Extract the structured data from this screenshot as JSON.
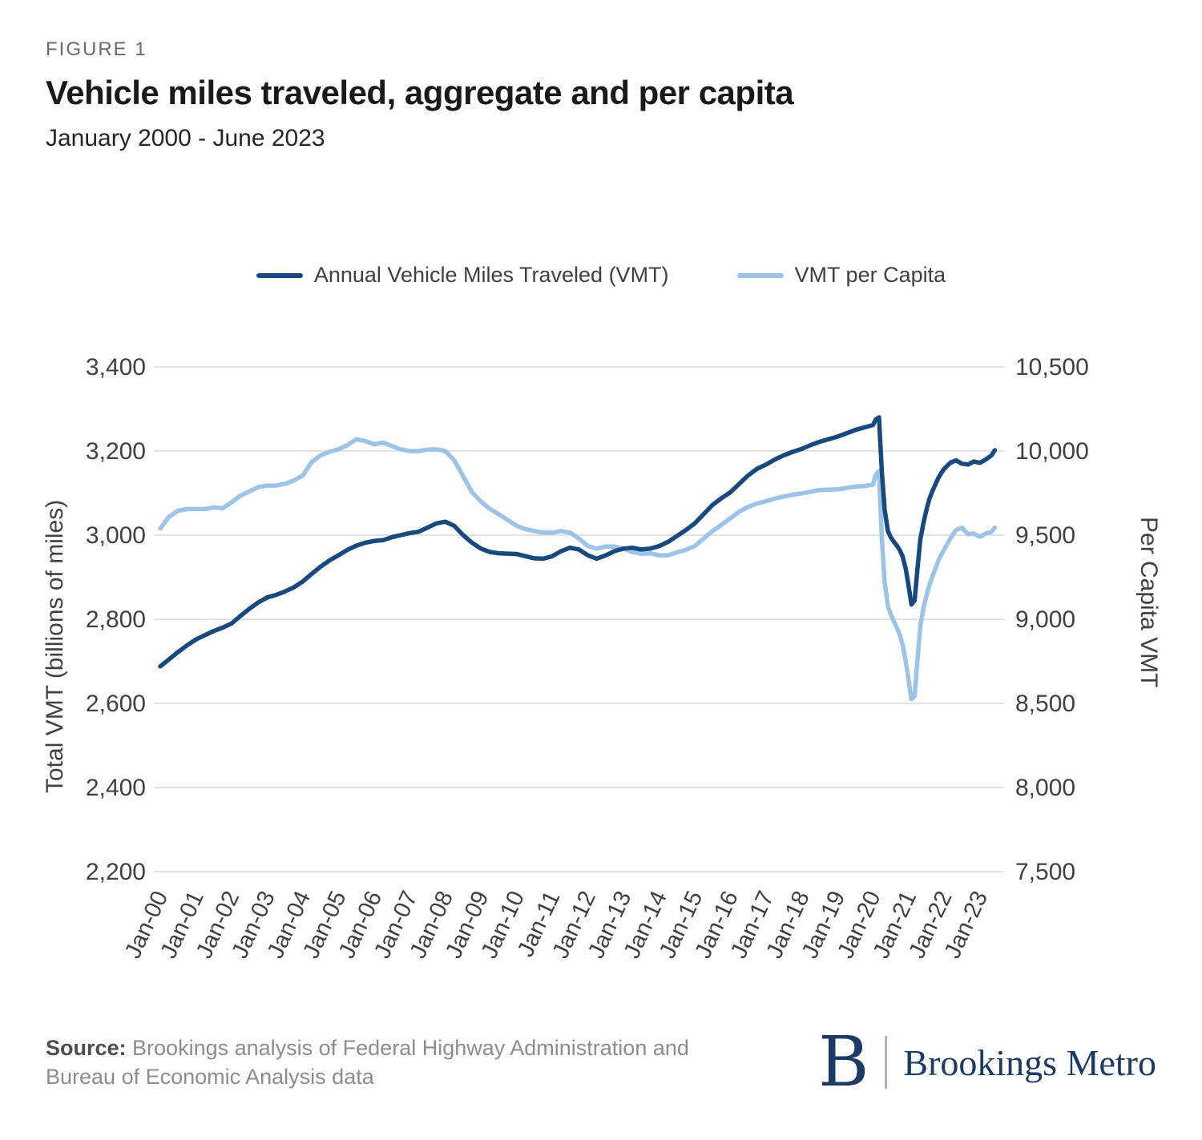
{
  "figure": {
    "label": "FIGURE 1",
    "title": "Vehicle miles traveled, aggregate and per capita",
    "subtitle": "January 2000 - June 2023"
  },
  "legend": {
    "items": [
      {
        "label": "Annual Vehicle Miles Traveled (VMT)"
      },
      {
        "label": "VMT per Capita"
      }
    ]
  },
  "chart_data": {
    "type": "line",
    "title": "Vehicle miles traveled, aggregate and per capita",
    "subtitle": "January 2000 - June 2023",
    "grid": true,
    "legend_position": "top",
    "left_axis": {
      "label": "Total VMT (billions of miles)",
      "range": [
        2200,
        3400
      ],
      "ticks": [
        "3,400",
        "3,200",
        "3,000",
        "2,800",
        "2,600",
        "2,400",
        "2,200"
      ]
    },
    "right_axis": {
      "label": "Per Capita VMT",
      "range": [
        7500,
        10500
      ],
      "ticks": [
        "10,500",
        "10,000",
        "9,500",
        "9,000",
        "8,500",
        "8,000",
        "7,500"
      ]
    },
    "x_ticks": [
      "Jan-00",
      "Jan-01",
      "Jan-02",
      "Jan-03",
      "Jan-04",
      "Jan-05",
      "Jan-06",
      "Jan-07",
      "Jan-08",
      "Jan-09",
      "Jan-10",
      "Jan-11",
      "Jan-12",
      "Jan-13",
      "Jan-14",
      "Jan-15",
      "Jan-16",
      "Jan-17",
      "Jan-18",
      "Jan-19",
      "Jan-20",
      "Jan-21",
      "Jan-22",
      "Jan-23"
    ],
    "x_range": [
      2000,
      2023.5
    ],
    "x": [
      2000,
      2000.25,
      2000.5,
      2000.75,
      2001,
      2001.25,
      2001.5,
      2001.75,
      2002,
      2002.25,
      2002.5,
      2002.75,
      2003,
      2003.25,
      2003.5,
      2003.75,
      2004,
      2004.25,
      2004.5,
      2004.75,
      2005,
      2005.25,
      2005.5,
      2005.75,
      2006,
      2006.25,
      2006.5,
      2006.75,
      2007,
      2007.25,
      2007.5,
      2007.75,
      2008,
      2008.25,
      2008.5,
      2008.75,
      2009,
      2009.25,
      2009.5,
      2009.75,
      2010,
      2010.25,
      2010.5,
      2010.75,
      2011,
      2011.25,
      2011.5,
      2011.75,
      2012,
      2012.25,
      2012.5,
      2012.75,
      2013,
      2013.25,
      2013.5,
      2013.75,
      2014,
      2014.25,
      2014.5,
      2014.75,
      2015,
      2015.25,
      2015.5,
      2015.75,
      2016,
      2016.25,
      2016.5,
      2016.75,
      2017,
      2017.25,
      2017.5,
      2017.75,
      2018,
      2018.25,
      2018.5,
      2018.75,
      2019,
      2019.25,
      2019.5,
      2019.75,
      2020,
      2020.08,
      2020.17,
      2020.25,
      2020.33,
      2020.42,
      2020.5,
      2020.58,
      2020.67,
      2020.75,
      2020.83,
      2020.92,
      2021,
      2021.08,
      2021.17,
      2021.25,
      2021.33,
      2021.42,
      2021.5,
      2021.58,
      2021.67,
      2021.75,
      2021.83,
      2021.92,
      2022,
      2022.17,
      2022.33,
      2022.5,
      2022.67,
      2022.83,
      2023,
      2023.17,
      2023.33,
      2023.42
    ],
    "series": [
      {
        "name": "Annual Vehicle Miles Traveled (VMT)",
        "axis": "left",
        "color": "#17497e",
        "values": [
          2688,
          2705,
          2722,
          2738,
          2752,
          2762,
          2772,
          2780,
          2790,
          2808,
          2825,
          2840,
          2852,
          2858,
          2866,
          2876,
          2890,
          2908,
          2925,
          2940,
          2952,
          2965,
          2975,
          2982,
          2986,
          2988,
          2995,
          3000,
          3005,
          3008,
          3018,
          3028,
          3032,
          3022,
          3000,
          2982,
          2968,
          2960,
          2957,
          2956,
          2955,
          2950,
          2945,
          2944,
          2950,
          2962,
          2970,
          2966,
          2952,
          2944,
          2952,
          2962,
          2968,
          2970,
          2966,
          2968,
          2974,
          2984,
          2998,
          3012,
          3028,
          3050,
          3072,
          3088,
          3102,
          3122,
          3142,
          3158,
          3168,
          3180,
          3190,
          3198,
          3205,
          3214,
          3222,
          3228,
          3234,
          3242,
          3250,
          3256,
          3262,
          3275,
          3280,
          3150,
          3060,
          3010,
          2995,
          2985,
          2975,
          2965,
          2950,
          2920,
          2880,
          2835,
          2845,
          2920,
          2990,
          3030,
          3060,
          3085,
          3105,
          3120,
          3135,
          3148,
          3158,
          3172,
          3178,
          3170,
          3168,
          3175,
          3172,
          3180,
          3190,
          3202
        ]
      },
      {
        "name": "VMT per Capita",
        "axis": "right",
        "color": "#9cc3e8",
        "values": [
          9540,
          9610,
          9645,
          9655,
          9655,
          9655,
          9665,
          9660,
          9695,
          9735,
          9760,
          9785,
          9795,
          9795,
          9805,
          9825,
          9855,
          9935,
          9975,
          9995,
          10010,
          10035,
          10070,
          10060,
          10040,
          10050,
          10030,
          10010,
          10000,
          10000,
          10008,
          10010,
          10000,
          9945,
          9850,
          9755,
          9700,
          9655,
          9625,
          9590,
          9555,
          9535,
          9525,
          9515,
          9515,
          9525,
          9515,
          9480,
          9435,
          9420,
          9432,
          9432,
          9420,
          9400,
          9390,
          9392,
          9380,
          9380,
          9398,
          9412,
          9435,
          9480,
          9525,
          9562,
          9600,
          9640,
          9668,
          9688,
          9702,
          9718,
          9730,
          9740,
          9748,
          9758,
          9768,
          9770,
          9772,
          9780,
          9788,
          9792,
          9800,
          9860,
          9880,
          9480,
          9220,
          9080,
          9030,
          8990,
          8950,
          8910,
          8850,
          8750,
          8640,
          8525,
          8545,
          8760,
          8960,
          9070,
          9140,
          9200,
          9255,
          9300,
          9345,
          9385,
          9415,
          9480,
          9530,
          9545,
          9505,
          9510,
          9490,
          9510,
          9520,
          9545
        ]
      }
    ]
  },
  "footer": {
    "source_label": "Source:",
    "source_text": " Brookings analysis of Federal Highway Administration and Bureau of Economic Analysis data",
    "logo_b": "B",
    "logo_text": "Brookings Metro"
  }
}
